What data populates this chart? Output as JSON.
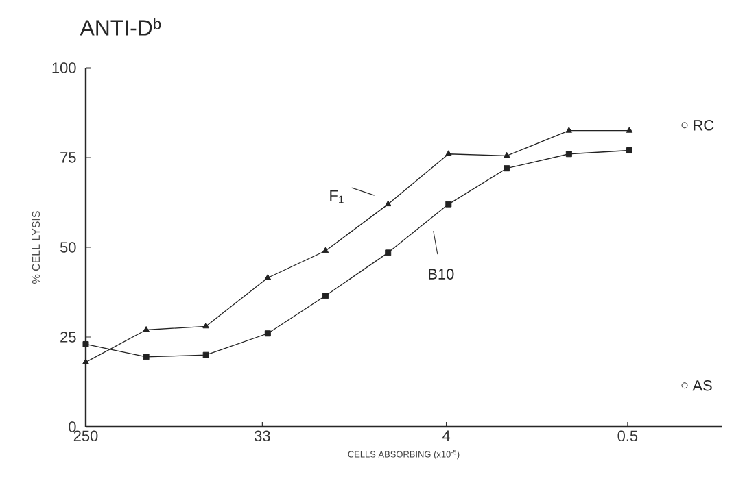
{
  "chart_data": {
    "type": "line",
    "title": "ANTI-D$^{b}$",
    "xlabel": "CELLS ABSORBING (x10$^{-5}$)",
    "ylabel": "% CELL LYSIS",
    "x": [
      250,
      125,
      63,
      31,
      16,
      7.8,
      3.9,
      2,
      0.98,
      0.49
    ],
    "log": "x",
    "series": [
      {
        "name": "F$_{1}$",
        "color": "#222222",
        "marker": "triangle",
        "values": [
          18,
          27,
          28,
          41.5,
          49,
          62,
          76,
          75.5,
          82.5,
          82.5
        ]
      },
      {
        "name": "B10",
        "color": "#222222",
        "marker": "square",
        "values": [
          23,
          19.5,
          20,
          26,
          36.5,
          48.5,
          62,
          72,
          76,
          77
        ]
      },
      {
        "name": "RC",
        "type": "scatter",
        "color": "#222222",
        "marker": "circle",
        "x": [
          0.26
        ],
        "values": [
          84
        ]
      },
      {
        "name": "AS",
        "type": "scatter",
        "color": "#222222",
        "marker": "circle",
        "x": [
          0.26
        ],
        "values": [
          11.5
        ]
      }
    ],
    "xlim": [
      250,
      0.17
    ],
    "xticks": [
      250,
      33,
      4,
      0.5
    ],
    "ylim": [
      0,
      100
    ],
    "yticks": [
      0,
      25,
      50,
      75,
      100
    ]
  }
}
